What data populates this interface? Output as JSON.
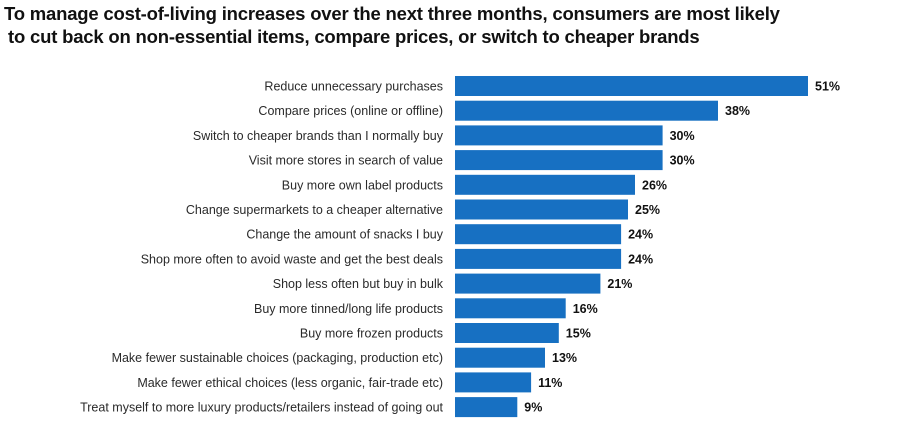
{
  "chart_data": {
    "type": "bar",
    "orientation": "horizontal",
    "title": "To manage cost-of-living increases over the next three months, consumers are most likely to cut back on non-essential items, compare prices, or switch to cheaper brands",
    "title_lines": [
      "To manage cost-of-living increases over the next three months, consumers are most likely",
      "to cut back on non-essential items, compare prices, or switch to cheaper brands"
    ],
    "xlabel": "",
    "ylabel": "",
    "unit": "%",
    "xlim": [
      0,
      51
    ],
    "grid": false,
    "legend": "none",
    "bar_color": "#1770C2",
    "categories": [
      "Reduce unnecessary purchases",
      "Compare prices (online or offline)",
      "Switch to cheaper brands than I normally buy",
      "Visit more stores in search of value",
      "Buy more own label products",
      "Change supermarkets to a cheaper alternative",
      "Change the amount of snacks I buy",
      "Shop more often to avoid waste and get the best deals",
      "Shop less often but buy in bulk",
      "Buy more tinned/long life products",
      "Buy more frozen products",
      "Make fewer sustainable choices (packaging, production etc)",
      "Make fewer ethical choices (less organic, fair-trade etc)",
      "Treat myself to more luxury products/retailers instead of going out"
    ],
    "values": [
      51,
      38,
      30,
      30,
      26,
      25,
      24,
      24,
      21,
      16,
      15,
      13,
      11,
      9
    ],
    "value_labels": [
      "51%",
      "38%",
      "30%",
      "30%",
      "26%",
      "25%",
      "24%",
      "24%",
      "21%",
      "16%",
      "15%",
      "13%",
      "11%",
      "9%"
    ]
  }
}
